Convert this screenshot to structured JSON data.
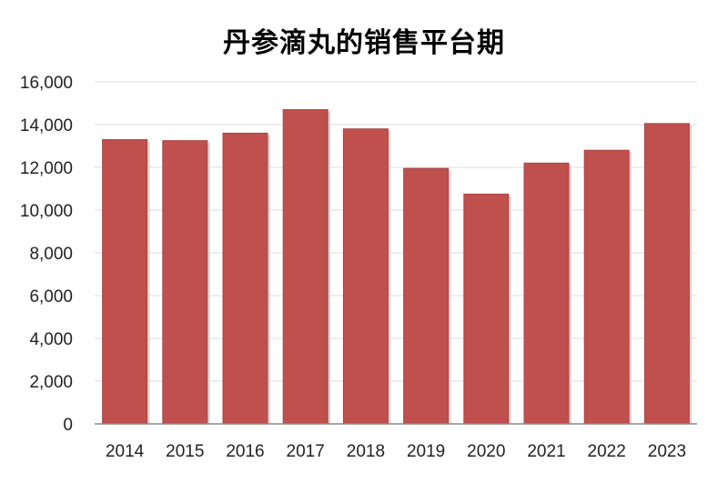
{
  "chart_data": {
    "type": "bar",
    "title": "丹参滴丸的销售平台期",
    "xlabel": "",
    "ylabel": "",
    "categories": [
      "2014",
      "2015",
      "2016",
      "2017",
      "2018",
      "2019",
      "2020",
      "2021",
      "2022",
      "2023"
    ],
    "values": [
      13300,
      13250,
      13600,
      14700,
      13800,
      11950,
      10750,
      12200,
      12800,
      14050
    ],
    "ylim": [
      0,
      16000
    ],
    "yticks": [
      0,
      2000,
      4000,
      6000,
      8000,
      10000,
      12000,
      14000,
      16000
    ],
    "ytick_labels": [
      "0",
      "2,000",
      "4,000",
      "6,000",
      "8,000",
      "10,000",
      "12,000",
      "14,000",
      "16,000"
    ],
    "grid": true,
    "legend": "none",
    "colors": {
      "bar": "#c0504d",
      "bar_edge": "#a94543"
    }
  }
}
